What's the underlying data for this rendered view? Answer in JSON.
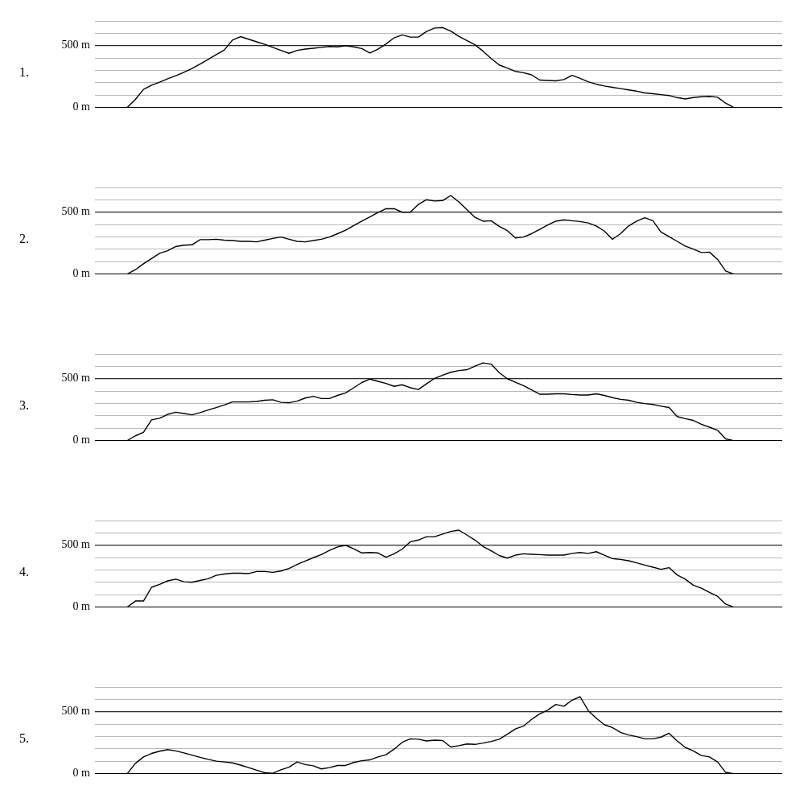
{
  "chart_data": [
    {
      "type": "line",
      "title": "1.",
      "categories": [
        null,
        null,
        null,
        null,
        null,
        null,
        null,
        null,
        null,
        null,
        null,
        null,
        null,
        null,
        null,
        null,
        null,
        null,
        null,
        null,
        null,
        null,
        null,
        null,
        null,
        null,
        null,
        null,
        null,
        null,
        null,
        null,
        null,
        null,
        null,
        null,
        null,
        null,
        null,
        null,
        null,
        null,
        null,
        null,
        null,
        null,
        null,
        null,
        null,
        null,
        null,
        null,
        null,
        null,
        null,
        null,
        null,
        null,
        null,
        null,
        null,
        null,
        null,
        null,
        null,
        null,
        null,
        null,
        null,
        null,
        null,
        null,
        null,
        null,
        null,
        null,
        null,
        null,
        null,
        null,
        null,
        null,
        null,
        null,
        null,
        null
      ],
      "series": [
        {
          "color": "#000000",
          "values": [
            null,
            null,
            null,
            null,
            0,
            66,
            146,
            180,
            205,
            233,
            257,
            285,
            316,
            351,
            389,
            427,
            465,
            545,
            573,
            552,
            531,
            510,
            486,
            462,
            438,
            462,
            472,
            479,
            486,
            493,
            490,
            500,
            490,
            476,
            441,
            472,
            514,
            563,
            587,
            569,
            569,
            615,
            642,
            646,
            618,
            576,
            542,
            507,
            455,
            396,
            344,
            319,
            292,
            281,
            264,
            222,
            219,
            215,
            226,
            260,
            236,
            208,
            188,
            174,
            163,
            153,
            142,
            132,
            118,
            111,
            104,
            97,
            80,
            69,
            80,
            87,
            90,
            83,
            35,
            0,
            null,
            null,
            null,
            null,
            null,
            null
          ]
        }
      ],
      "ylim": [
        0,
        700
      ],
      "yticks": [
        {
          "value": 0,
          "label": "0 m"
        },
        {
          "value": 100,
          "label": null
        },
        {
          "value": 200,
          "label": null
        },
        {
          "value": 300,
          "label": null
        },
        {
          "value": 400,
          "label": null
        },
        {
          "value": 500,
          "label": "500 m"
        },
        {
          "value": 600,
          "label": null
        },
        {
          "value": 700,
          "label": null
        }
      ],
      "ref_lines": [
        {
          "axis": "y",
          "value": 500,
          "color": "#000000"
        }
      ],
      "grid": "y",
      "marker": "none",
      "tick_labels": "y"
    },
    {
      "type": "line",
      "title": "2.",
      "categories": [
        null,
        null,
        null,
        null,
        null,
        null,
        null,
        null,
        null,
        null,
        null,
        null,
        null,
        null,
        null,
        null,
        null,
        null,
        null,
        null,
        null,
        null,
        null,
        null,
        null,
        null,
        null,
        null,
        null,
        null,
        null,
        null,
        null,
        null,
        null,
        null,
        null,
        null,
        null,
        null,
        null,
        null,
        null,
        null,
        null,
        null,
        null,
        null,
        null,
        null,
        null,
        null,
        null,
        null,
        null,
        null,
        null,
        null,
        null,
        null,
        null,
        null,
        null,
        null,
        null,
        null,
        null,
        null,
        null,
        null,
        null,
        null,
        null,
        null,
        null,
        null,
        null,
        null,
        null,
        null,
        null,
        null,
        null,
        null,
        null,
        null
      ],
      "series": [
        {
          "color": "#000000",
          "values": [
            null,
            null,
            null,
            null,
            0,
            35,
            83,
            125,
            167,
            188,
            222,
            233,
            236,
            278,
            278,
            281,
            274,
            271,
            264,
            264,
            260,
            274,
            288,
            299,
            281,
            264,
            260,
            271,
            281,
            299,
            326,
            354,
            392,
            427,
            462,
            497,
            528,
            528,
            500,
            500,
            563,
            601,
            590,
            594,
            635,
            583,
            521,
            458,
            427,
            431,
            385,
            351,
            292,
            299,
            326,
            361,
            396,
            427,
            438,
            431,
            424,
            413,
            389,
            347,
            281,
            326,
            389,
            427,
            455,
            431,
            340,
            302,
            264,
            226,
            201,
            174,
            177,
            118,
            24,
            0,
            null,
            null,
            null,
            null,
            null,
            null
          ]
        }
      ],
      "ylim": [
        0,
        700
      ],
      "yticks": [
        {
          "value": 0,
          "label": "0 m"
        },
        {
          "value": 100,
          "label": null
        },
        {
          "value": 200,
          "label": null
        },
        {
          "value": 300,
          "label": null
        },
        {
          "value": 400,
          "label": null
        },
        {
          "value": 500,
          "label": "500 m"
        },
        {
          "value": 600,
          "label": null
        },
        {
          "value": 700,
          "label": null
        }
      ],
      "ref_lines": [
        {
          "axis": "y",
          "value": 500,
          "color": "#000000"
        }
      ],
      "grid": "y",
      "marker": "none",
      "tick_labels": "y"
    },
    {
      "type": "line",
      "title": "3.",
      "categories": [
        null,
        null,
        null,
        null,
        null,
        null,
        null,
        null,
        null,
        null,
        null,
        null,
        null,
        null,
        null,
        null,
        null,
        null,
        null,
        null,
        null,
        null,
        null,
        null,
        null,
        null,
        null,
        null,
        null,
        null,
        null,
        null,
        null,
        null,
        null,
        null,
        null,
        null,
        null,
        null,
        null,
        null,
        null,
        null,
        null,
        null,
        null,
        null,
        null,
        null,
        null,
        null,
        null,
        null,
        null,
        null,
        null,
        null,
        null,
        null,
        null,
        null,
        null,
        null,
        null,
        null,
        null,
        null,
        null,
        null,
        null,
        null,
        null,
        null,
        null,
        null,
        null,
        null,
        null,
        null,
        null,
        null,
        null,
        null,
        null,
        null
      ],
      "series": [
        {
          "color": "#000000",
          "values": [
            null,
            null,
            null,
            null,
            0,
            38,
            66,
            167,
            180,
            212,
            229,
            219,
            208,
            226,
            247,
            267,
            288,
            312,
            312,
            312,
            316,
            326,
            330,
            309,
            306,
            319,
            344,
            358,
            340,
            340,
            365,
            385,
            427,
            469,
            497,
            479,
            462,
            438,
            451,
            427,
            413,
            458,
            503,
            528,
            552,
            566,
            573,
            601,
            628,
            618,
            549,
            500,
            472,
            444,
            410,
            375,
            375,
            378,
            378,
            372,
            368,
            368,
            378,
            365,
            347,
            333,
            326,
            309,
            299,
            292,
            278,
            267,
            194,
            177,
            163,
            132,
            108,
            83,
            14,
            0,
            null,
            null,
            null,
            null,
            null,
            null
          ]
        }
      ],
      "ylim": [
        0,
        700
      ],
      "yticks": [
        {
          "value": 0,
          "label": "0 m"
        },
        {
          "value": 100,
          "label": null
        },
        {
          "value": 200,
          "label": null
        },
        {
          "value": 300,
          "label": null
        },
        {
          "value": 400,
          "label": null
        },
        {
          "value": 500,
          "label": "500 m"
        },
        {
          "value": 600,
          "label": null
        },
        {
          "value": 700,
          "label": null
        }
      ],
      "ref_lines": [
        {
          "axis": "y",
          "value": 500,
          "color": "#000000"
        }
      ],
      "grid": "y",
      "marker": "none",
      "tick_labels": "y"
    },
    {
      "type": "line",
      "title": "4.",
      "categories": [
        null,
        null,
        null,
        null,
        null,
        null,
        null,
        null,
        null,
        null,
        null,
        null,
        null,
        null,
        null,
        null,
        null,
        null,
        null,
        null,
        null,
        null,
        null,
        null,
        null,
        null,
        null,
        null,
        null,
        null,
        null,
        null,
        null,
        null,
        null,
        null,
        null,
        null,
        null,
        null,
        null,
        null,
        null,
        null,
        null,
        null,
        null,
        null,
        null,
        null,
        null,
        null,
        null,
        null,
        null,
        null,
        null,
        null,
        null,
        null,
        null,
        null,
        null,
        null,
        null,
        null,
        null,
        null,
        null,
        null,
        null,
        null,
        null,
        null,
        null,
        null,
        null,
        null,
        null,
        null,
        null,
        null,
        null,
        null,
        null,
        null
      ],
      "series": [
        {
          "color": "#000000",
          "values": [
            null,
            null,
            null,
            null,
            0,
            49,
            49,
            160,
            184,
            212,
            226,
            205,
            201,
            215,
            229,
            257,
            267,
            274,
            274,
            271,
            288,
            288,
            281,
            292,
            312,
            344,
            372,
            399,
            424,
            458,
            486,
            500,
            472,
            438,
            441,
            438,
            403,
            431,
            469,
            528,
            542,
            569,
            569,
            590,
            611,
            622,
            583,
            542,
            490,
            455,
            417,
            396,
            420,
            431,
            427,
            424,
            420,
            420,
            420,
            434,
            441,
            434,
            448,
            420,
            392,
            385,
            375,
            358,
            340,
            323,
            306,
            319,
            260,
            226,
            177,
            153,
            118,
            87,
            24,
            0,
            null,
            null,
            null,
            null,
            null,
            null
          ]
        }
      ],
      "ylim": [
        0,
        700
      ],
      "yticks": [
        {
          "value": 0,
          "label": "0 m"
        },
        {
          "value": 100,
          "label": null
        },
        {
          "value": 200,
          "label": null
        },
        {
          "value": 300,
          "label": null
        },
        {
          "value": 400,
          "label": null
        },
        {
          "value": 500,
          "label": "500 m"
        },
        {
          "value": 600,
          "label": null
        },
        {
          "value": 700,
          "label": null
        }
      ],
      "ref_lines": [
        {
          "axis": "y",
          "value": 500,
          "color": "#000000"
        }
      ],
      "grid": "y",
      "marker": "none",
      "tick_labels": "y"
    },
    {
      "type": "line",
      "title": "5.",
      "categories": [
        null,
        null,
        null,
        null,
        null,
        null,
        null,
        null,
        null,
        null,
        null,
        null,
        null,
        null,
        null,
        null,
        null,
        null,
        null,
        null,
        null,
        null,
        null,
        null,
        null,
        null,
        null,
        null,
        null,
        null,
        null,
        null,
        null,
        null,
        null,
        null,
        null,
        null,
        null,
        null,
        null,
        null,
        null,
        null,
        null,
        null,
        null,
        null,
        null,
        null,
        null,
        null,
        null,
        null,
        null,
        null,
        null,
        null,
        null,
        null,
        null,
        null,
        null,
        null,
        null,
        null,
        null,
        null,
        null,
        null,
        null,
        null,
        null,
        null,
        null,
        null,
        null,
        null,
        null,
        null,
        null,
        null,
        null,
        null,
        null,
        null
      ],
      "series": [
        {
          "color": "#000000",
          "values": [
            null,
            null,
            null,
            null,
            0,
            83,
            135,
            163,
            181,
            194,
            184,
            167,
            149,
            132,
            115,
            101,
            94,
            87,
            69,
            49,
            28,
            7,
            3,
            31,
            52,
            94,
            73,
            63,
            38,
            49,
            66,
            66,
            90,
            104,
            111,
            135,
            153,
            198,
            253,
            281,
            278,
            264,
            271,
            267,
            215,
            226,
            240,
            236,
            247,
            260,
            278,
            319,
            361,
            385,
            438,
            483,
            514,
            559,
            545,
            594,
            622,
            510,
            448,
            396,
            372,
            333,
            312,
            299,
            281,
            281,
            295,
            326,
            264,
            212,
            184,
            146,
            135,
            94,
            10,
            0,
            null,
            null,
            null,
            null,
            null,
            null
          ]
        }
      ],
      "ylim": [
        0,
        700
      ],
      "yticks": [
        {
          "value": 0,
          "label": "0 m"
        },
        {
          "value": 100,
          "label": null
        },
        {
          "value": 200,
          "label": null
        },
        {
          "value": 300,
          "label": null
        },
        {
          "value": 400,
          "label": null
        },
        {
          "value": 500,
          "label": "500 m"
        },
        {
          "value": 600,
          "label": null
        },
        {
          "value": 700,
          "label": null
        }
      ],
      "ref_lines": [
        {
          "axis": "y",
          "value": 500,
          "color": "#000000"
        }
      ],
      "grid": "y",
      "marker": "none",
      "tick_labels": "y"
    }
  ]
}
